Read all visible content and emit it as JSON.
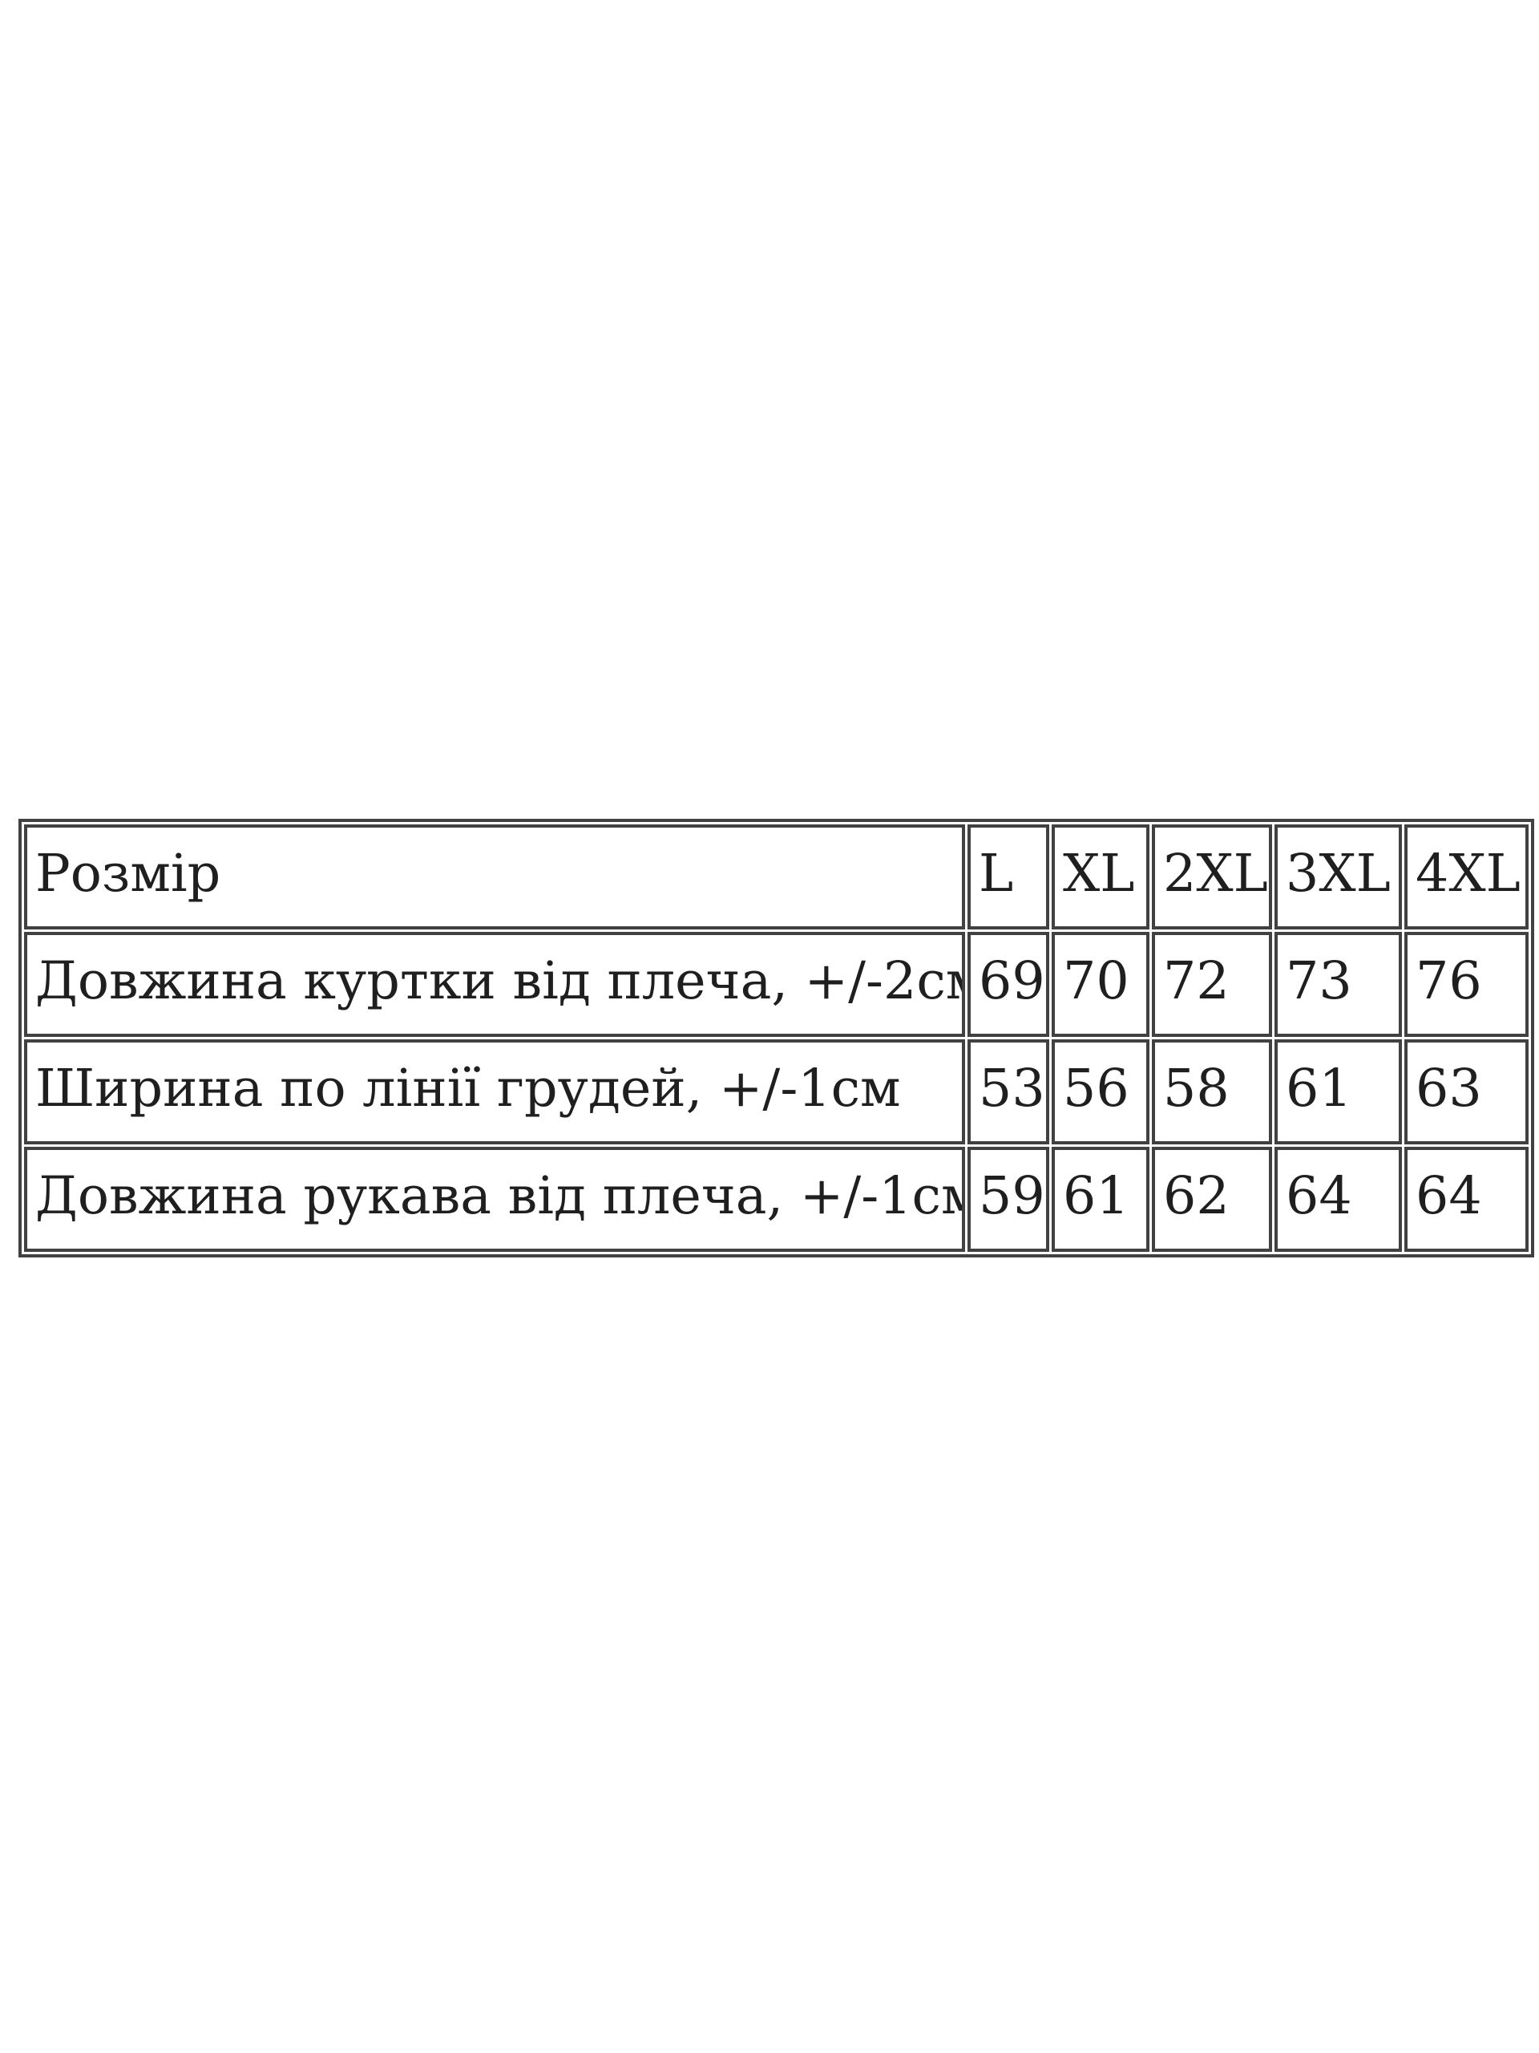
{
  "colors": {
    "page_bg": "#ffffff",
    "border": "#414141",
    "text": "#1f1f1f"
  },
  "size_table": {
    "header": {
      "label": "Розмір",
      "sizes": [
        "L",
        "XL",
        "2XL",
        "3XL",
        "4XL"
      ]
    },
    "rows": [
      {
        "label": "Довжина куртки від плеча, +/-2см",
        "values": [
          "69",
          "70",
          "72",
          "73",
          "76"
        ]
      },
      {
        "label": "Ширина по лінії грудей, +/-1см",
        "values": [
          "53",
          "56",
          "58",
          "61",
          "63"
        ]
      },
      {
        "label": "Довжина рукава від плеча, +/-1см",
        "values": [
          "59",
          "61",
          "62",
          "64",
          "64"
        ]
      }
    ]
  }
}
